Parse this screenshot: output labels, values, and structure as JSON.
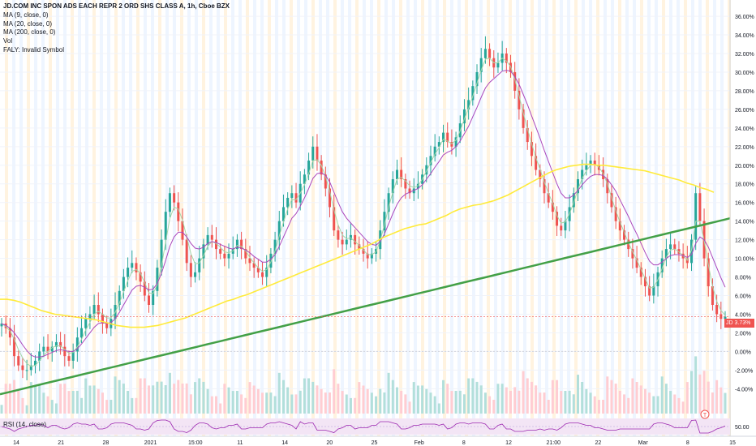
{
  "legend": {
    "title": "JD.COM INC SPON ADS EACH REPR 2 ORD SHS CLASS A, 1h, Cboe BZX",
    "ma9": "MA (9, close, 0)",
    "ma20": "MA (20, close, 0)",
    "ma200": "MA (200, close, 0)",
    "vol": "Vol",
    "faly": "FALY: Invalid Symbol"
  },
  "rsi": {
    "label": "RSI (14, close)",
    "level_label": "50.00"
  },
  "price_tag": {
    "label": "JD",
    "value": "3.73%"
  },
  "event_marker": "T",
  "colors": {
    "up": "#26a69a",
    "down": "#ef5350",
    "ma9": "#a5d6a7",
    "ma20": "#ab47bc",
    "ma200": "#ffeb3b",
    "trendline": "#43a047",
    "rsi": "#9c27b0"
  },
  "chart_data": {
    "type": "line",
    "title": "JD.COM INC SPON ADS EACH REPR 2 ORD SHS CLASS A, 1h, Cboe BZX",
    "y_unit": "%",
    "ylim": [
      -5.8,
      37.4
    ],
    "y_ticks": [
      "36.00%",
      "34.00%",
      "32.00%",
      "30.00%",
      "28.00%",
      "26.00%",
      "24.00%",
      "22.00%",
      "20.00%",
      "18.00%",
      "16.00%",
      "14.00%",
      "12.00%",
      "10.00%",
      "8.00%",
      "6.00%",
      "4.00%",
      "2.00%",
      "0.00%",
      "-2.00%",
      "-4.00%"
    ],
    "x_ticks": [
      "14",
      "21",
      "28",
      "2021",
      "15:00",
      "11",
      "14",
      "20",
      "25",
      "Feb",
      "8",
      "12",
      "21:00",
      "22",
      "Mar",
      "8",
      "15"
    ],
    "grid": true,
    "series": [
      {
        "values": [
          3,
          2.5,
          1.5,
          -0.5,
          -1.5,
          -2,
          -2,
          -1.5,
          -1,
          0,
          0.5,
          0,
          0.5,
          1,
          0.5,
          -0.5,
          -1,
          0,
          1.5,
          2.5,
          3.5,
          4,
          5,
          4,
          3,
          2.5,
          3.5,
          5,
          6.5,
          8,
          9,
          9.5,
          8.5,
          7.5,
          6,
          5,
          6.5,
          9,
          12,
          15,
          17,
          16,
          14,
          12,
          9.5,
          8,
          8.5,
          10,
          11.5,
          12.5,
          12,
          11,
          10.5,
          10,
          10.5,
          11,
          12,
          11,
          10,
          9.5,
          9,
          8.5,
          8,
          9,
          10.5,
          12,
          14,
          15.5,
          16.5,
          17,
          16,
          18,
          19,
          20.5,
          22,
          20.5,
          19,
          17.5,
          15.5,
          13,
          12,
          11.5,
          12,
          12.5,
          11.5,
          11,
          10.5,
          10,
          10.5,
          11,
          13,
          15,
          17,
          18.5,
          19.5,
          18.5,
          17.5,
          17,
          17.5,
          18,
          19,
          20,
          21,
          22,
          22.5,
          23.5,
          22.5,
          22,
          23,
          24.5,
          26,
          27,
          28.5,
          30,
          31.5,
          32.5,
          31.5,
          30.5,
          31,
          32,
          31,
          30,
          28,
          26,
          24,
          22.5,
          21,
          19.5,
          18.5,
          17,
          16,
          15,
          13.5,
          13,
          14,
          15.5,
          17,
          18.5,
          19.5,
          20,
          20.5,
          20,
          19.5,
          18.5,
          17,
          15.5,
          14,
          13,
          12,
          11,
          10,
          9,
          8,
          7,
          6,
          7,
          8.5,
          10,
          11,
          11.5,
          11,
          10.5,
          10,
          9.5,
          12,
          17,
          14,
          10,
          7,
          5,
          4,
          3.5,
          3.73
        ]
      },
      {
        "values": [
          3,
          2.7,
          2.2,
          1.3,
          0.2,
          -0.7,
          -1.3,
          -1.6,
          -1.5,
          -1,
          -0.4,
          0,
          0.4,
          0.6,
          0.6,
          0.2,
          -0.2,
          -0.1,
          0.5,
          1.3,
          2.3,
          3.1,
          4,
          4.3,
          4,
          3.6,
          3.6,
          4.2,
          5.2,
          6.4,
          7.6,
          8.6,
          8.8,
          8.4,
          7.4,
          6.3,
          6.2,
          7.2,
          9.2,
          11.8,
          14.3,
          15.5,
          15.3,
          14.1,
          12.3,
          10.5,
          9.4,
          9.5,
          10.3,
          11.3,
          11.8,
          11.6,
          11.2,
          10.7,
          10.6,
          10.8,
          11.4,
          11.3,
          10.8,
          10.1,
          9.5,
          9,
          8.6,
          8.8,
          9.6,
          10.8,
          12.4,
          13.9,
          15.3,
          16.3,
          16.3,
          17,
          17.9,
          19.1,
          20.5,
          20.6,
          20,
          18.8,
          17.2,
          15.2,
          13.6,
          12.5,
          12.1,
          12.2,
          11.8,
          11.4,
          10.9,
          10.4,
          10.4,
          10.7,
          11.9,
          13.6,
          15.5,
          17.1,
          18.5,
          18.7,
          18.3,
          17.8,
          17.6,
          17.8,
          18.5,
          19.4,
          20.3,
          21.2,
          21.9,
          22.8,
          22.6,
          22.3,
          22.7,
          23.7,
          25,
          26.1,
          27.4,
          28.8,
          30.2,
          31.4,
          31.5,
          31,
          31,
          31.5,
          31.2,
          30.6,
          29.2,
          27.5,
          25.6,
          23.9,
          22.3,
          20.8,
          19.6,
          18.2,
          17,
          15.9,
          14.6,
          13.8,
          13.9,
          14.8,
          16,
          17.4,
          18.6,
          19.4,
          20,
          20.1,
          19.8,
          19.1,
          18,
          16.5,
          15.1,
          13.9,
          12.8,
          11.7,
          10.7,
          9.8,
          8.8,
          7.8,
          6.8,
          6.9,
          7.7,
          8.9,
          10.1,
          10.9,
          11,
          10.7,
          10.3,
          9.8,
          10.9,
          14,
          14,
          11.9,
          9.3,
          7,
          5.4,
          4.4,
          3.9
        ]
      },
      {
        "values": [
          3,
          2.8,
          2.5,
          2,
          1.4,
          0.7,
          0.1,
          -0.4,
          -0.6,
          -0.6,
          -0.5,
          -0.3,
          -0.1,
          0.1,
          0.2,
          0.1,
          0,
          0,
          0.3,
          0.8,
          1.4,
          2,
          2.6,
          3,
          3.1,
          3,
          3.1,
          3.5,
          4.2,
          5,
          5.8,
          6.6,
          7,
          7.1,
          6.9,
          6.6,
          6.7,
          7.3,
          8.4,
          9.8,
          11.3,
          12.3,
          12.8,
          12.8,
          12.3,
          11.6,
          11.1,
          11,
          11.2,
          11.6,
          11.8,
          11.7,
          11.5,
          11.3,
          11.1,
          11,
          11.2,
          11.1,
          10.9,
          10.6,
          10.2,
          9.9,
          9.6,
          9.6,
          9.9,
          10.4,
          11.3,
          12.3,
          13.3,
          14.3,
          14.8,
          15.6,
          16.5,
          17.5,
          18.6,
          19.1,
          19.2,
          18.9,
          18.2,
          17.1,
          16,
          15,
          14.3,
          13.8,
          13.3,
          12.8,
          12.3,
          11.8,
          11.5,
          11.4,
          11.8,
          12.6,
          13.7,
          14.8,
          15.8,
          16.5,
          16.9,
          17.1,
          17.3,
          17.5,
          17.9,
          18.5,
          19.1,
          19.8,
          20.4,
          21.1,
          21.4,
          21.6,
          22,
          22.6,
          23.4,
          24.2,
          25.2,
          26.2,
          27.3,
          28.3,
          28.9,
          29.3,
          29.7,
          30.1,
          30.2,
          30.1,
          29.5,
          28.7,
          27.6,
          26.5,
          25.3,
          24.1,
          22.9,
          21.6,
          20.4,
          19.2,
          18,
          17,
          16.5,
          16.5,
          16.8,
          17.3,
          17.9,
          18.4,
          18.8,
          19,
          19,
          18.9,
          18.5,
          17.9,
          17.2,
          16.3,
          15.4,
          14.5,
          13.5,
          12.6,
          11.6,
          10.6,
          9.7,
          9.3,
          9.3,
          9.6,
          10,
          10.3,
          10.4,
          10.4,
          10.3,
          10.1,
          10.4,
          11.6,
          12.3,
          12,
          11.2,
          10.1,
          9,
          7.9,
          6.9
        ]
      },
      {
        "values": [
          5.6,
          5.6,
          5.5,
          5.3,
          5,
          4.7,
          4.4,
          4.2,
          4,
          3.9,
          3.8,
          3.7,
          3.6,
          3.5,
          3.4,
          3.2,
          3,
          2.8,
          2.7,
          2.6,
          2.6,
          2.6,
          2.7,
          2.8,
          3,
          3.2,
          3.4,
          3.6,
          3.9,
          4.2,
          4.5,
          4.8,
          5.1,
          5.4,
          5.6,
          5.9,
          6.1,
          6.4,
          6.7,
          7,
          7.3,
          7.6,
          7.9,
          8.2,
          8.5,
          8.8,
          9.1,
          9.4,
          9.7,
          10,
          10.3,
          10.6,
          10.9,
          11.2,
          11.5,
          11.9,
          12.3,
          12.6,
          12.9,
          13.2,
          13.4,
          13.6,
          13.7,
          14,
          14.3,
          14.6,
          15,
          15.3,
          15.5,
          15.7,
          15.8,
          16,
          16.2,
          16.5,
          16.8,
          17.2,
          17.6,
          18,
          18.4,
          18.8,
          19.2,
          19.5,
          19.7,
          19.9,
          20,
          20.1,
          20.1,
          20,
          20,
          19.9,
          19.8,
          19.7,
          19.6,
          19.5,
          19.4,
          19.2,
          19,
          18.8,
          18.6,
          18.4,
          18.1,
          17.9,
          17.6,
          17.4,
          17.1
        ]
      },
      {
        "values": [
          -4.6,
          -4.3,
          -4,
          -3.7,
          -3.4,
          -3.1,
          -2.8,
          -2.5,
          -2.2,
          -1.9,
          -1.6,
          -1.3,
          -1,
          -0.7,
          -0.4,
          -0.1,
          0.2,
          0.5,
          0.8,
          1.1,
          1.4,
          1.7,
          2,
          2.3,
          2.6,
          2.9,
          3.2,
          3.5,
          3.8,
          4.1,
          4.4,
          4.7,
          5,
          5.3,
          5.6,
          5.9,
          6.2,
          6.5,
          6.8,
          7.1,
          7.4,
          7.7,
          8,
          8.3,
          8.6,
          8.9,
          9.2,
          9.5,
          9.8,
          10.1,
          10.4,
          10.7,
          11,
          11.3,
          11.6,
          11.9,
          12.2,
          12.5,
          12.8,
          13.1,
          13.4,
          13.7,
          14,
          14.3
        ]
      }
    ]
  }
}
